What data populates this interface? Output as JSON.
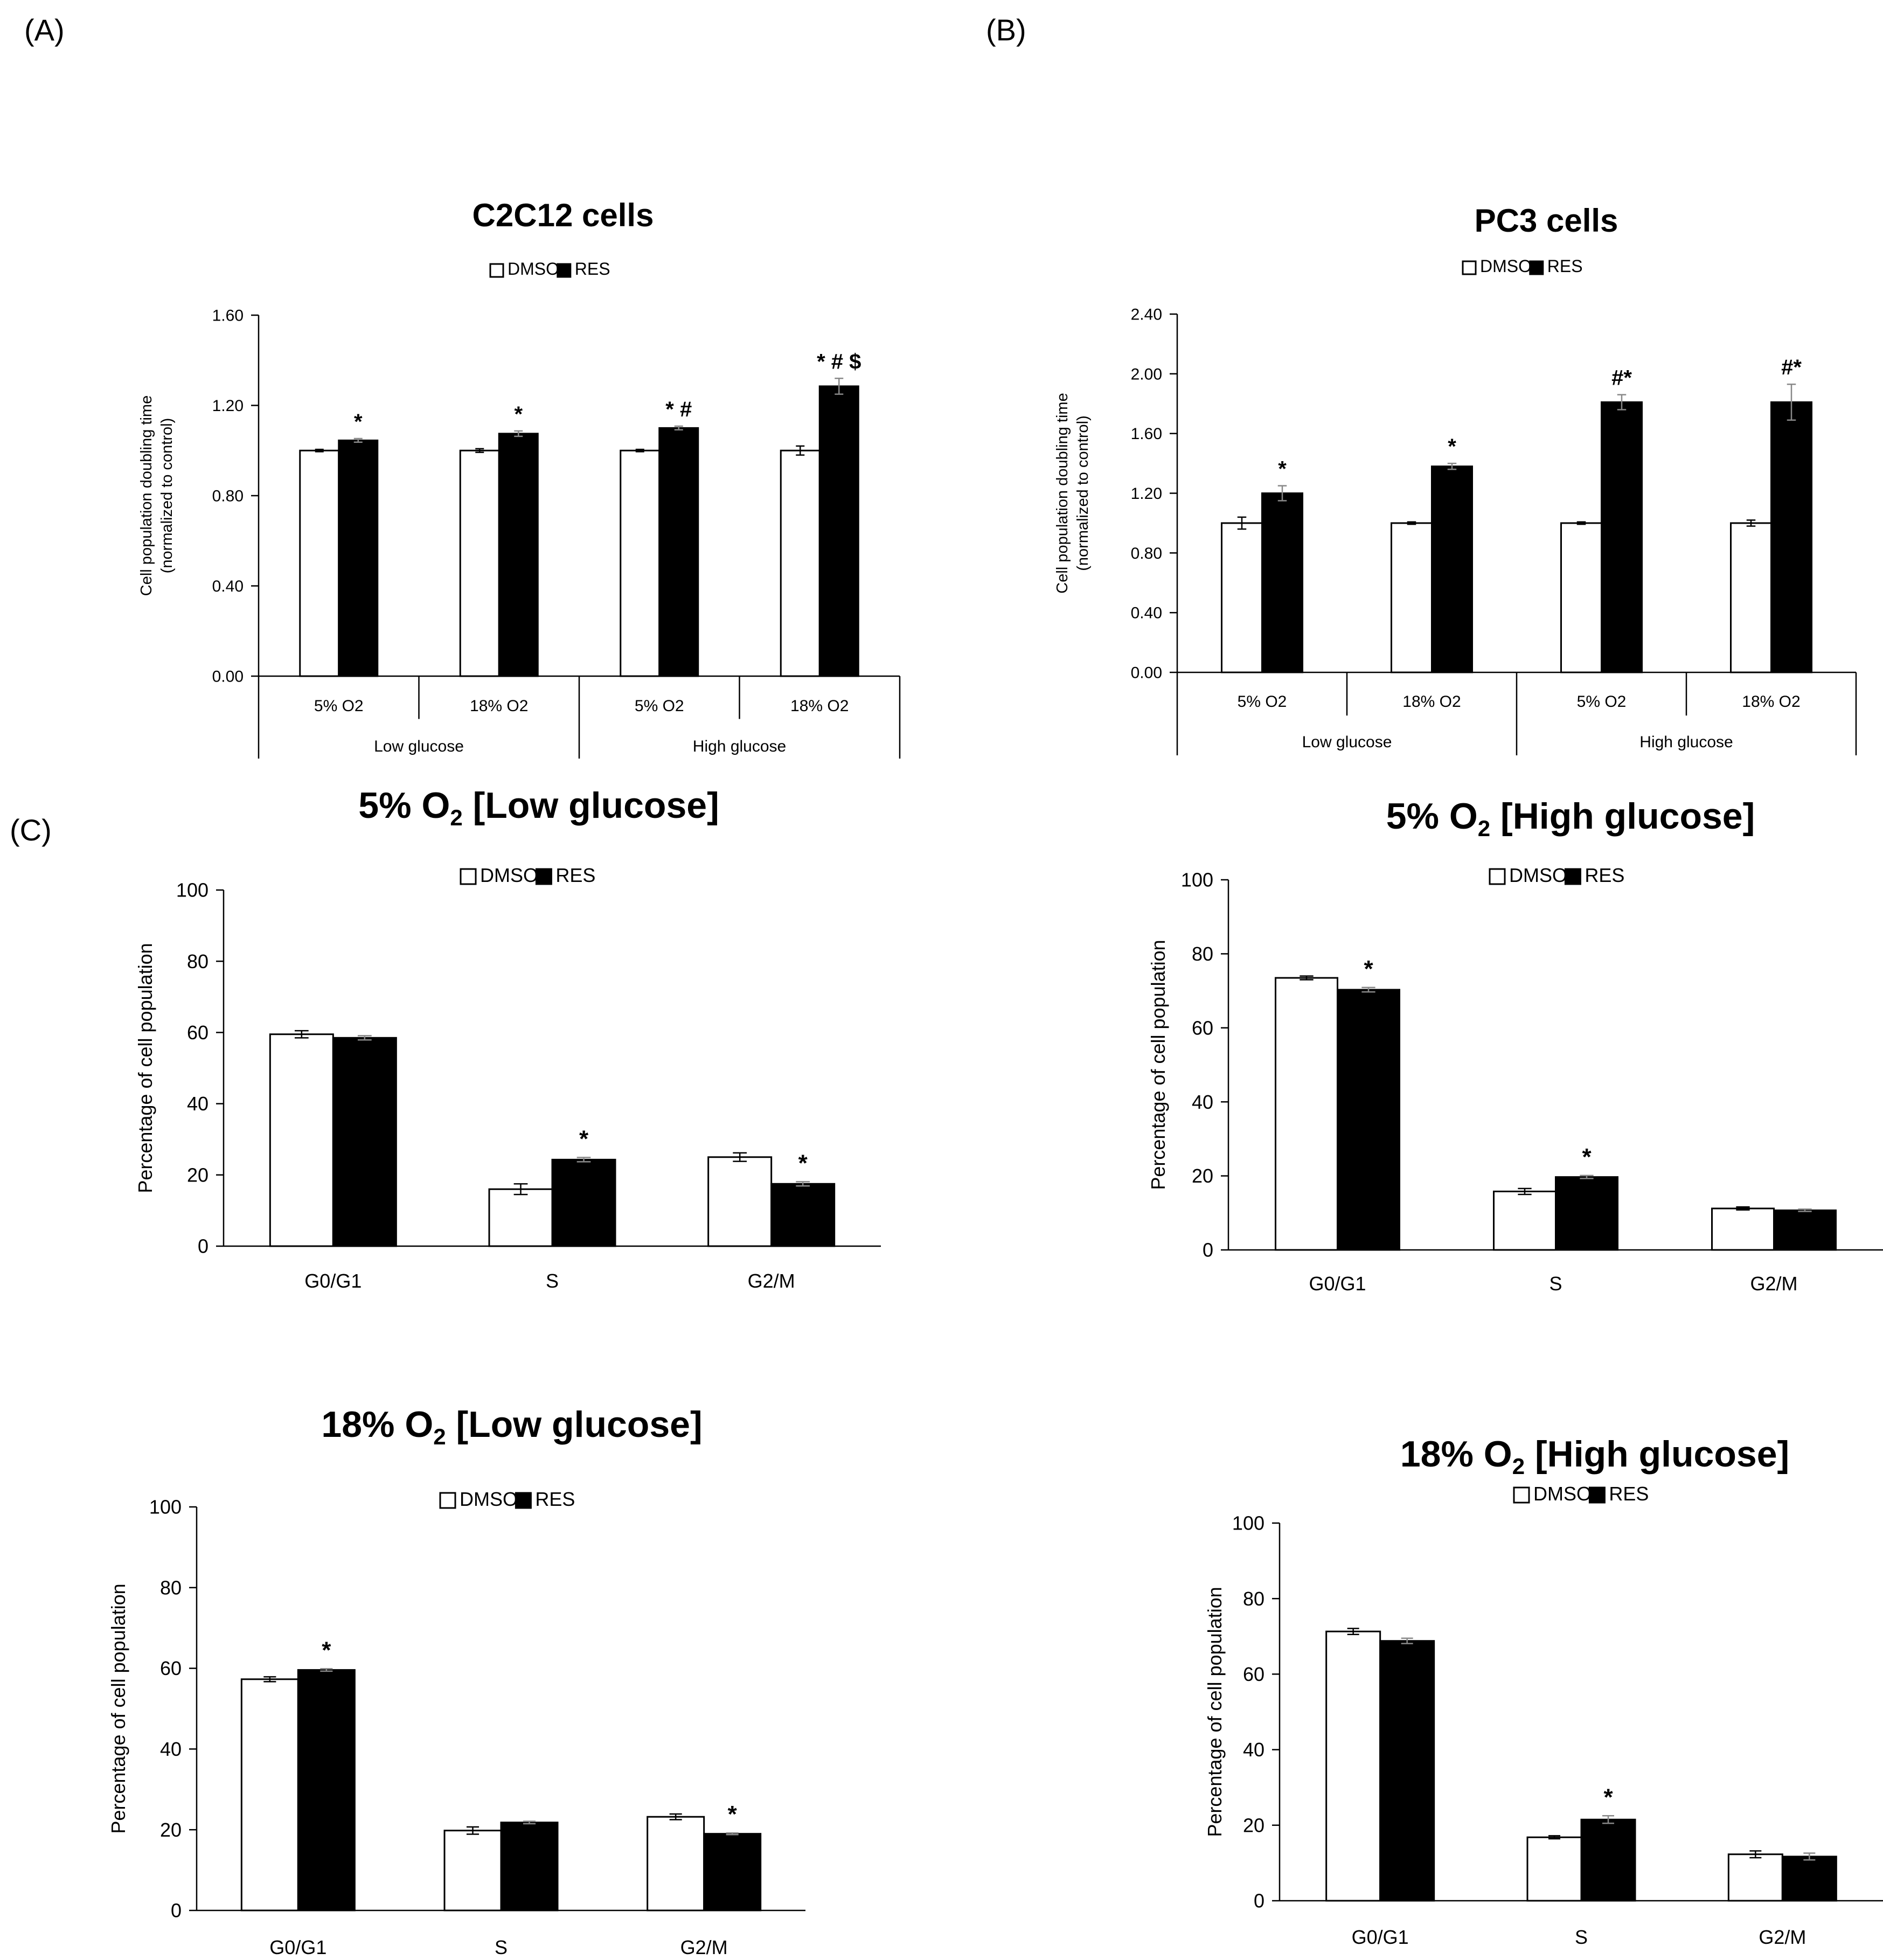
{
  "panels": [
    "(A)",
    "(B)",
    "(C)"
  ],
  "legend": {
    "dmso": "DMSO",
    "res": "RES"
  },
  "colors": {
    "dmso_fill": "#ffffff",
    "res_fill": "#000000",
    "stroke": "#000000"
  },
  "chart_data": [
    {
      "id": "a",
      "type": "bar",
      "title": "C2C12 cells",
      "ylabel": [
        "Cell population doubling time",
        "(normalized to control)"
      ],
      "ylim": [
        0,
        1.6
      ],
      "yticks": [
        "0.00",
        "0.40",
        "0.80",
        "1.20",
        "1.60"
      ],
      "categories": [
        "5% O2",
        "18% O2",
        "5% O2",
        "18% O2"
      ],
      "groups": [
        "Low glucose",
        "High glucose"
      ],
      "series": [
        {
          "name": "DMSO",
          "values": [
            1.0,
            1.0,
            1.0,
            1.0
          ],
          "errors": [
            0.005,
            0.008,
            0.005,
            0.02
          ]
        },
        {
          "name": "RES",
          "values": [
            1.045,
            1.075,
            1.1,
            1.285
          ],
          "errors": [
            0.008,
            0.012,
            0.008,
            0.035
          ]
        }
      ],
      "annotations": [
        "*",
        "*",
        "* #",
        "* # $"
      ]
    },
    {
      "id": "b",
      "type": "bar",
      "title": "PC3 cells",
      "ylabel": [
        "Cell population doubling time",
        "(normalized to control)"
      ],
      "ylim": [
        0,
        2.4
      ],
      "yticks": [
        "0.00",
        "0.40",
        "0.80",
        "1.20",
        "1.60",
        "2.00",
        "2.40"
      ],
      "categories": [
        "5% O2",
        "18% O2",
        "5% O2",
        "18% O2"
      ],
      "groups": [
        "Low glucose",
        "High glucose"
      ],
      "series": [
        {
          "name": "DMSO",
          "values": [
            1.0,
            1.0,
            1.0,
            1.0
          ],
          "errors": [
            0.04,
            0.008,
            0.008,
            0.02
          ]
        },
        {
          "name": "RES",
          "values": [
            1.2,
            1.38,
            1.81,
            1.81
          ],
          "errors": [
            0.05,
            0.02,
            0.05,
            0.12
          ]
        }
      ],
      "annotations": [
        "*",
        "*",
        "#*",
        "#*"
      ]
    },
    {
      "id": "c1",
      "type": "bar",
      "title": [
        "5% O",
        "2",
        " [Low glucose]"
      ],
      "ylabel": [
        "Percentage of cell population"
      ],
      "ylim": [
        0,
        100
      ],
      "yticks": [
        "0",
        "20",
        "40",
        "60",
        "80",
        "100"
      ],
      "categories": [
        "G0/G1",
        "S",
        "G2/M"
      ],
      "series": [
        {
          "name": "DMSO",
          "values": [
            59.5,
            16,
            25
          ],
          "errors": [
            1.0,
            1.5,
            1.2
          ]
        },
        {
          "name": "RES",
          "values": [
            58.5,
            24.3,
            17.5
          ],
          "errors": [
            0.6,
            0.6,
            0.6
          ]
        }
      ],
      "annotations": [
        "",
        "*",
        "*"
      ]
    },
    {
      "id": "c2",
      "type": "bar",
      "title": [
        "5% O",
        "2",
        " [High glucose]"
      ],
      "ylabel": [
        "Percentage of cell population"
      ],
      "ylim": [
        0,
        100
      ],
      "yticks": [
        "0",
        "20",
        "40",
        "60",
        "80",
        "100"
      ],
      "categories": [
        "G0/G1",
        "S",
        "G2/M"
      ],
      "series": [
        {
          "name": "DMSO",
          "values": [
            73.5,
            15.8,
            11.2
          ],
          "errors": [
            0.5,
            0.8,
            0.4
          ]
        },
        {
          "name": "RES",
          "values": [
            70.3,
            19.7,
            10.7
          ],
          "errors": [
            0.6,
            0.4,
            0.3
          ]
        }
      ],
      "annotations": [
        "*",
        "*",
        ""
      ]
    },
    {
      "id": "c3",
      "type": "bar",
      "title": [
        "18% O",
        "2",
        " [Low glucose]"
      ],
      "ylabel": [
        "Percentage of cell population"
      ],
      "ylim": [
        0,
        100
      ],
      "yticks": [
        "0",
        "20",
        "40",
        "60",
        "80",
        "100"
      ],
      "categories": [
        "G0/G1",
        "S",
        "G2/M"
      ],
      "series": [
        {
          "name": "DMSO",
          "values": [
            57.3,
            19.8,
            23.2
          ],
          "errors": [
            0.6,
            0.9,
            0.7
          ]
        },
        {
          "name": "RES",
          "values": [
            59.6,
            21.8,
            19.0
          ],
          "errors": [
            0.3,
            0.3,
            0.2
          ]
        }
      ],
      "annotations": [
        "*",
        "",
        "*"
      ]
    },
    {
      "id": "c4",
      "type": "bar",
      "title": [
        "18% O",
        "2",
        " [High glucose]"
      ],
      "ylabel": [
        "Percentage of cell population"
      ],
      "ylim": [
        0,
        100
      ],
      "yticks": [
        "0",
        "20",
        "40",
        "60",
        "80",
        "100"
      ],
      "categories": [
        "G0/G1",
        "S",
        "G2/M"
      ],
      "series": [
        {
          "name": "DMSO",
          "values": [
            71.3,
            16.8,
            12.3
          ],
          "errors": [
            0.8,
            0.4,
            0.9
          ]
        },
        {
          "name": "RES",
          "values": [
            68.8,
            21.5,
            11.7
          ],
          "errors": [
            0.7,
            1.0,
            0.9
          ]
        }
      ],
      "annotations": [
        "",
        "*",
        ""
      ]
    }
  ]
}
